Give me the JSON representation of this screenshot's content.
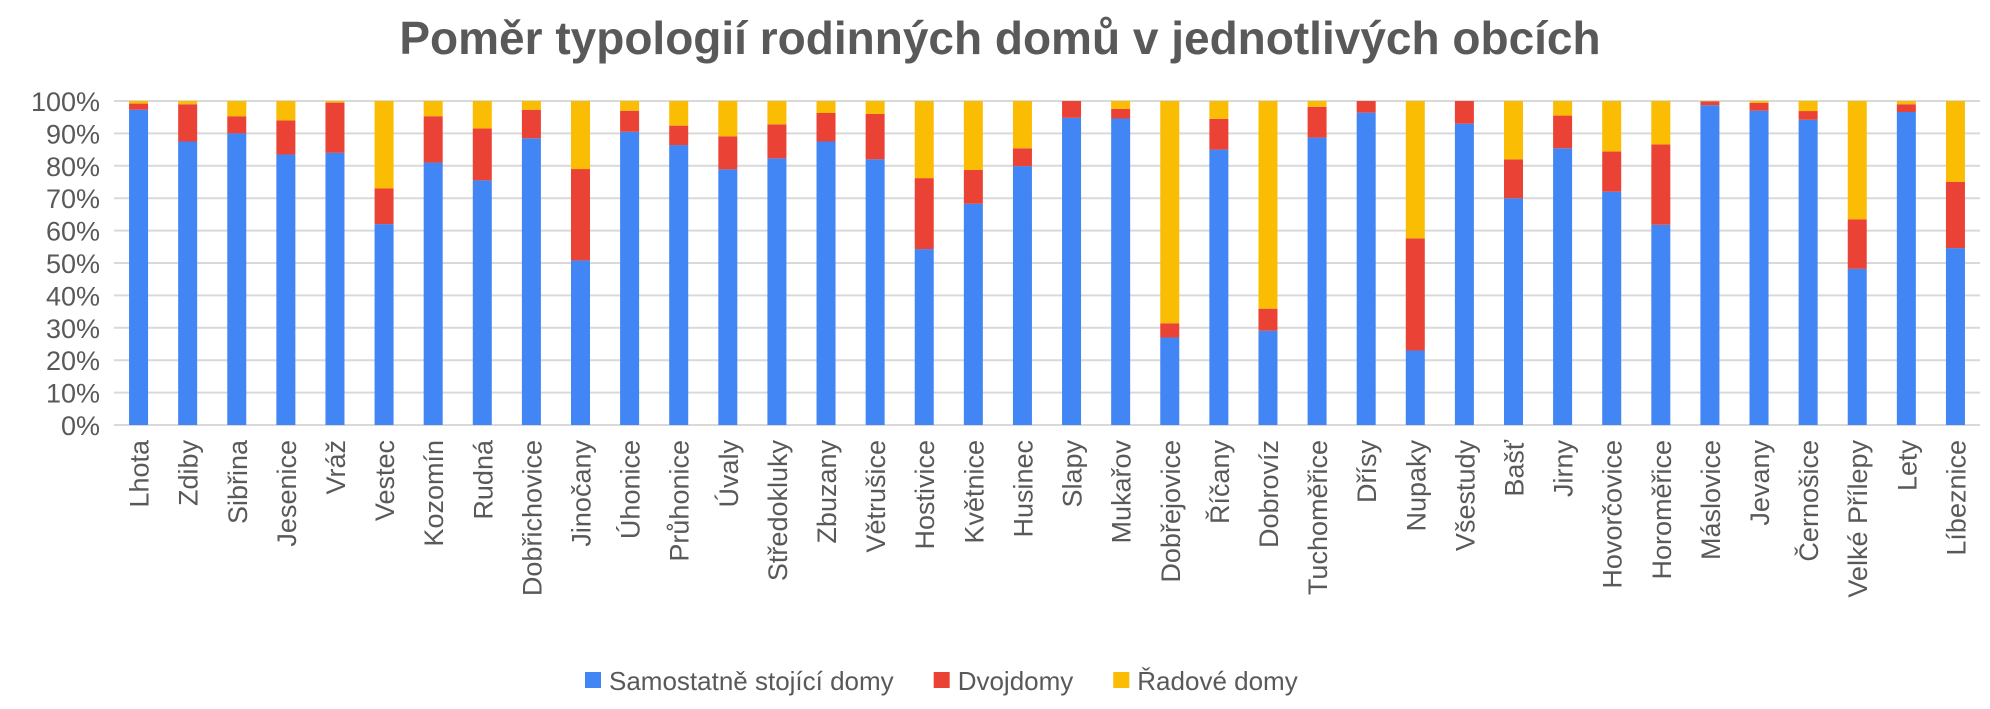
{
  "chart_data": {
    "type": "bar",
    "stacked": "percent",
    "title": "Poměr typologií rodinných domů v jednotlivých obcích",
    "xlabel": "",
    "ylabel": "",
    "ylim": [
      0,
      100
    ],
    "yticks": [
      "0%",
      "10%",
      "20%",
      "30%",
      "40%",
      "50%",
      "60%",
      "70%",
      "80%",
      "90%",
      "100%"
    ],
    "grid": true,
    "legend_position": "bottom",
    "categories": [
      "Lhota",
      "Zdiby",
      "Sibřina",
      "Jesenice",
      "Vráž",
      "Vestec",
      "Kozomín",
      "Rudná",
      "Dobřichovice",
      "Jinočany",
      "Úhonice",
      "Průhonice",
      "Úvaly",
      "Středokluky",
      "Zbuzany",
      "Větrušice",
      "Hostivice",
      "Květnice",
      "Husinec",
      "Slapy",
      "Mukařov",
      "Dobřejovice",
      "Říčany",
      "Dobrovíz",
      "Tuchoměřice",
      "Dřísy",
      "Nupaky",
      "Všestudy",
      "Bašť",
      "Jirny",
      "Hovorčovice",
      "Horoměřice",
      "Máslovice",
      "Jevany",
      "Černošice",
      "Velké Přílepy",
      "Lety",
      "Líbeznice"
    ],
    "series": [
      {
        "name": "Samostatně stojící domy",
        "color": "#4285f4",
        "values": [
          97.3,
          87.5,
          90,
          83.5,
          84,
          62,
          81,
          75.5,
          88.5,
          50.8,
          90.5,
          86.4,
          78.9,
          82.3,
          87.5,
          82,
          54.3,
          68.3,
          79.9,
          94.8,
          94.6,
          27,
          85,
          29.1,
          88.7,
          96.4,
          23,
          93,
          70,
          85.4,
          72,
          61.8,
          98.7,
          97,
          94.2,
          48.2,
          96.6,
          54.6
        ]
      },
      {
        "name": "Dvojdomy",
        "color": "#ea4335",
        "values": [
          1.9,
          11.5,
          5.3,
          10.5,
          15.5,
          11,
          14.3,
          16,
          8.8,
          28.2,
          6.5,
          6,
          10.2,
          10.5,
          8.8,
          14,
          21.9,
          10.4,
          5.5,
          5.2,
          3,
          4.4,
          9.5,
          6.8,
          9.5,
          3.6,
          34.6,
          7,
          12,
          10.1,
          12.4,
          24.8,
          1.2,
          2.4,
          2.7,
          15.3,
          2.4,
          20.4
        ]
      },
      {
        "name": "Řadové domy",
        "color": "#fbbc04",
        "values": [
          0.8,
          1,
          4.7,
          6,
          0.5,
          27,
          4.7,
          8.5,
          2.7,
          21,
          3,
          7.6,
          10.9,
          7.2,
          3.7,
          4,
          23.8,
          21.3,
          14.6,
          0,
          2.4,
          68.6,
          5.5,
          64.1,
          1.8,
          0,
          42.4,
          0,
          18,
          4.5,
          15.6,
          13.4,
          0.1,
          0.6,
          3.1,
          36.5,
          1,
          25
        ]
      }
    ]
  }
}
